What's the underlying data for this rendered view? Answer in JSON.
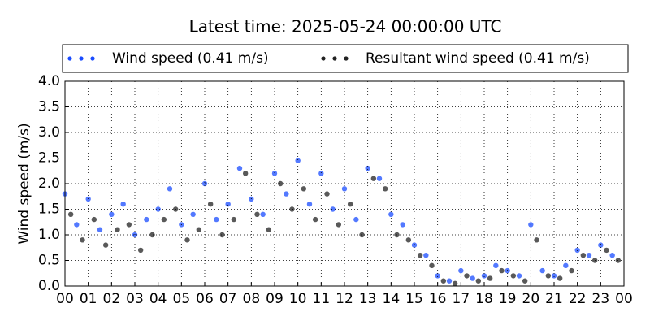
{
  "chart_data": {
    "type": "scatter",
    "title": "Latest time: 2025-05-24 00:00:00 UTC",
    "y_label": "Wind speed (m/s)",
    "grid": true,
    "legend": "top",
    "xlim": [
      0,
      24
    ],
    "xticks": [
      {
        "value": 0,
        "label": "00"
      },
      {
        "value": 1,
        "label": "01"
      },
      {
        "value": 2,
        "label": "02"
      },
      {
        "value": 3,
        "label": "03"
      },
      {
        "value": 4,
        "label": "04"
      },
      {
        "value": 5,
        "label": "05"
      },
      {
        "value": 6,
        "label": "06"
      },
      {
        "value": 7,
        "label": "07"
      },
      {
        "value": 8,
        "label": "08"
      },
      {
        "value": 9,
        "label": "09"
      },
      {
        "value": 10,
        "label": "10"
      },
      {
        "value": 11,
        "label": "11"
      },
      {
        "value": 12,
        "label": "12"
      },
      {
        "value": 13,
        "label": "13"
      },
      {
        "value": 14,
        "label": "14"
      },
      {
        "value": 15,
        "label": "15"
      },
      {
        "value": 16,
        "label": "16"
      },
      {
        "value": 17,
        "label": "17"
      },
      {
        "value": 18,
        "label": "18"
      },
      {
        "value": 19,
        "label": "19"
      },
      {
        "value": 20,
        "label": "20"
      },
      {
        "value": 21,
        "label": "21"
      },
      {
        "value": 22,
        "label": "22"
      },
      {
        "value": 23,
        "label": "23"
      },
      {
        "value": 24,
        "label": "00"
      }
    ],
    "ylim": [
      0,
      4
    ],
    "yticks": [
      {
        "value": 0,
        "label": "0.0"
      },
      0.5,
      {
        "value": 1,
        "label": "1.0"
      },
      1.5,
      {
        "value": 2,
        "label": "2.0"
      },
      2.5,
      {
        "value": 3,
        "label": "3.0"
      },
      3.5,
      {
        "value": 4,
        "label": "4.0"
      }
    ],
    "series": [
      {
        "name": "Wind speed (0.41 m/s)",
        "color": "#1a4cff",
        "x": [
          0,
          0.5,
          1,
          1.5,
          2,
          2.5,
          3,
          3.5,
          4,
          4.5,
          5,
          5.5,
          6,
          6.5,
          7,
          7.5,
          8,
          8.5,
          9,
          9.5,
          10,
          10.5,
          11,
          11.5,
          12,
          12.5,
          13,
          13.5,
          14,
          14.5,
          15,
          15.5,
          16,
          16.5,
          17,
          17.5,
          18,
          18.5,
          19,
          19.5,
          20,
          20.5,
          21,
          21.5,
          22,
          22.5,
          23,
          23.5
        ],
        "values": [
          1.8,
          1.2,
          1.7,
          1.1,
          1.4,
          1.6,
          1.0,
          1.3,
          1.5,
          1.9,
          1.2,
          1.4,
          2.0,
          1.3,
          1.6,
          2.3,
          1.7,
          1.4,
          2.2,
          1.8,
          2.45,
          1.6,
          2.2,
          1.5,
          1.9,
          1.3,
          2.3,
          2.1,
          1.4,
          1.2,
          0.8,
          0.6,
          0.2,
          0.1,
          0.3,
          0.15,
          0.2,
          0.4,
          0.3,
          0.2,
          1.2,
          0.3,
          0.2,
          0.4,
          0.7,
          0.6,
          0.8,
          0.6
        ]
      },
      {
        "name": "Resultant wind speed (0.41 m/s)",
        "color": "#222222",
        "x": [
          0.25,
          0.75,
          1.25,
          1.75,
          2.25,
          2.75,
          3.25,
          3.75,
          4.25,
          4.75,
          5.25,
          5.75,
          6.25,
          6.75,
          7.25,
          7.75,
          8.25,
          8.75,
          9.25,
          9.75,
          10.25,
          10.75,
          11.25,
          11.75,
          12.25,
          12.75,
          13.25,
          13.75,
          14.25,
          14.75,
          15.25,
          15.75,
          16.25,
          16.75,
          17.25,
          17.75,
          18.25,
          18.75,
          19.25,
          19.75,
          20.25,
          20.75,
          21.25,
          21.75,
          22.25,
          22.75,
          23.25,
          23.75
        ],
        "values": [
          1.4,
          0.9,
          1.3,
          0.8,
          1.1,
          1.2,
          0.7,
          1.0,
          1.3,
          1.5,
          0.9,
          1.1,
          1.6,
          1.0,
          1.3,
          2.2,
          1.4,
          1.1,
          2.0,
          1.5,
          1.9,
          1.3,
          1.8,
          1.2,
          1.6,
          1.0,
          2.1,
          1.9,
          1.0,
          0.9,
          0.6,
          0.4,
          0.1,
          0.05,
          0.2,
          0.1,
          0.15,
          0.3,
          0.2,
          0.1,
          0.9,
          0.2,
          0.15,
          0.3,
          0.6,
          0.5,
          0.7,
          0.5
        ]
      }
    ]
  }
}
